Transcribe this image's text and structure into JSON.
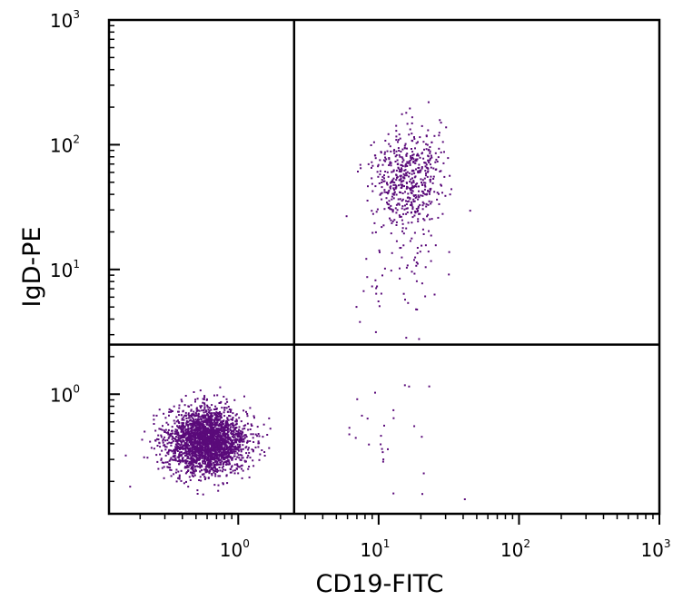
{
  "chart_data": {
    "type": "scatter",
    "title": "",
    "xlabel": "CD19-FITC",
    "ylabel": "IgD-PE",
    "x_scale": "log",
    "y_scale": "log",
    "xlim": [
      0.12,
      1000
    ],
    "ylim": [
      0.11,
      1000
    ],
    "x_ticks": [
      {
        "value": 1,
        "base": "10",
        "exp": "0"
      },
      {
        "value": 10,
        "base": "10",
        "exp": "1"
      },
      {
        "value": 100,
        "base": "10",
        "exp": "2"
      },
      {
        "value": 1000,
        "base": "10",
        "exp": "3"
      }
    ],
    "y_ticks": [
      {
        "value": 1,
        "base": "10",
        "exp": "0"
      },
      {
        "value": 10,
        "base": "10",
        "exp": "1"
      },
      {
        "value": 100,
        "base": "10",
        "exp": "2"
      },
      {
        "value": 1000,
        "base": "10",
        "exp": "3"
      }
    ],
    "quadrant_gates": {
      "x": 2.5,
      "y": 2.5
    },
    "grid": false,
    "legend": "none",
    "point_color": "#5a0a7a",
    "populations": [
      {
        "region": "lower-left",
        "center": [
          0.6,
          0.42
        ],
        "spread_log10": [
          0.14,
          0.13
        ],
        "count": 2600
      },
      {
        "region": "upper-right",
        "center": [
          16,
          55
        ],
        "spread_log10": [
          0.12,
          0.2
        ],
        "count": 520
      },
      {
        "region": "upper-right tail",
        "center": [
          14,
          15
        ],
        "spread_log10": [
          0.15,
          0.3
        ],
        "count": 90
      },
      {
        "region": "lower-right",
        "center": [
          14,
          0.5
        ],
        "spread_log10": [
          0.22,
          0.25
        ],
        "count": 28
      }
    ]
  }
}
